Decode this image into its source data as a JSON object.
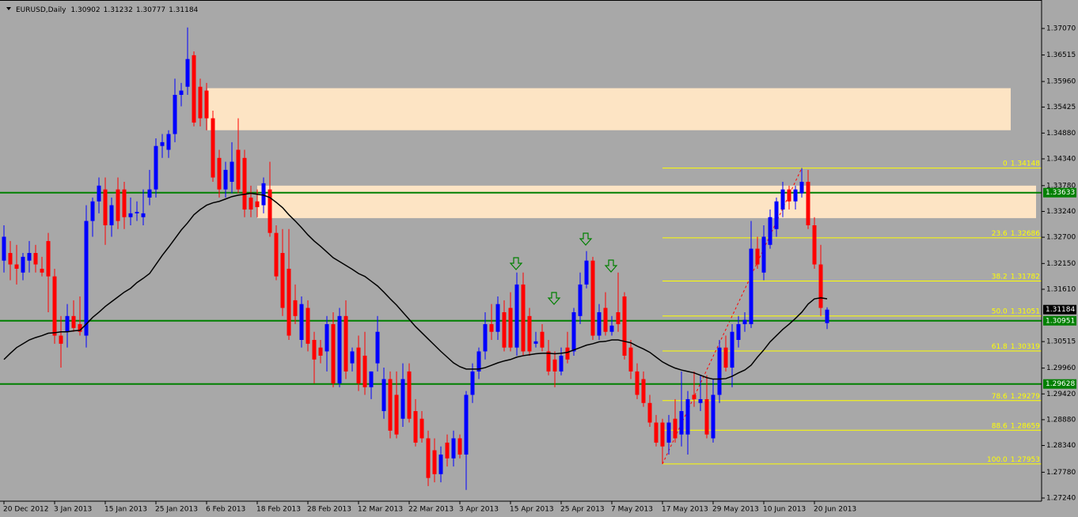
{
  "chart_data": {
    "type": "candlestick",
    "title": "EURUSD,Daily",
    "up_color": "#0000ff",
    "down_color": "#ff0000",
    "categories": [
      "20 Dec 2012",
      null,
      null,
      null,
      null,
      null,
      null,
      null,
      "3 Jan 2013",
      null,
      null,
      null,
      null,
      null,
      null,
      null,
      "15 Jan 2013",
      null,
      null,
      null,
      null,
      null,
      null,
      null,
      "25 Jan 2013",
      null,
      null,
      null,
      null,
      null,
      null,
      null,
      "6 Feb 2013",
      null,
      null,
      null,
      null,
      null,
      null,
      null,
      "18 Feb 2013",
      null,
      null,
      null,
      null,
      null,
      null,
      null,
      "28 Feb 2013",
      null,
      null,
      null,
      null,
      null,
      null,
      null,
      "12 Mar 2013",
      null,
      null,
      null,
      null,
      null,
      null,
      null,
      "22 Mar 2013",
      null,
      null,
      null,
      null,
      null,
      null,
      null,
      "3 Apr 2013",
      null,
      null,
      null,
      null,
      null,
      null,
      null,
      "15 Apr 2013",
      null,
      null,
      null,
      null,
      null,
      null,
      null,
      "25 Apr 2013",
      null,
      null,
      null,
      null,
      null,
      null,
      null,
      "7 May 2013",
      null,
      null,
      null,
      null,
      null,
      null,
      null,
      "17 May 2013",
      null,
      null,
      null,
      null,
      null,
      null,
      null,
      "29 May 2013",
      null,
      null,
      null,
      null,
      null,
      null,
      null,
      "10 Jun 2013",
      null,
      null,
      null,
      null,
      null,
      null,
      null,
      "20 Jun 2013",
      null,
      null
    ],
    "candles": [
      [
        1.3221,
        1.3295,
        1.3196,
        1.3271
      ],
      [
        1.3237,
        1.3262,
        1.318,
        1.3213
      ],
      [
        1.3213,
        1.3254,
        1.3171,
        1.3204
      ],
      [
        1.3196,
        1.3237,
        1.318,
        1.3229
      ],
      [
        1.3221,
        1.3262,
        1.3196,
        1.3237
      ],
      [
        1.3237,
        1.3254,
        1.3196,
        1.3213
      ],
      [
        1.3204,
        1.3229,
        1.3188,
        1.3196
      ],
      [
        1.3262,
        1.3279,
        1.3113,
        1.3188
      ],
      [
        1.3188,
        1.3204,
        1.3047,
        1.3064
      ],
      [
        1.3064,
        1.3105,
        1.2997,
        1.3047
      ],
      [
        1.3072,
        1.313,
        1.3039,
        1.3105
      ],
      [
        1.3105,
        1.3138,
        1.3072,
        1.308
      ],
      [
        1.3088,
        1.3146,
        1.3064,
        1.3072
      ],
      [
        1.3064,
        1.3337,
        1.3039,
        1.3304
      ],
      [
        1.3304,
        1.3353,
        1.3271,
        1.3345
      ],
      [
        1.3345,
        1.3395,
        1.332,
        1.3378
      ],
      [
        1.337,
        1.3395,
        1.3254,
        1.3295
      ],
      [
        1.3295,
        1.3353,
        1.3271,
        1.3337
      ],
      [
        1.337,
        1.3395,
        1.3287,
        1.3304
      ],
      [
        1.337,
        1.3386,
        1.3287,
        1.3312
      ],
      [
        1.3312,
        1.3353,
        1.3295,
        1.332
      ],
      [
        1.332,
        1.3345,
        1.3304,
        1.3323
      ],
      [
        1.3312,
        1.337,
        1.3295,
        1.332
      ],
      [
        1.3353,
        1.3411,
        1.3337,
        1.337
      ],
      [
        1.337,
        1.3477,
        1.3353,
        1.3461
      ],
      [
        1.3461,
        1.3486,
        1.3436,
        1.3469
      ],
      [
        1.3453,
        1.3494,
        1.3436,
        1.3486
      ],
      [
        1.3486,
        1.3602,
        1.3469,
        1.3568
      ],
      [
        1.3568,
        1.3593,
        1.3544,
        1.3577
      ],
      [
        1.3585,
        1.3709,
        1.3568,
        1.3643
      ],
      [
        1.3651,
        1.3659,
        1.3502,
        1.351
      ],
      [
        1.3585,
        1.3602,
        1.3502,
        1.3519
      ],
      [
        1.3577,
        1.3593,
        1.3494,
        1.3519
      ],
      [
        1.3519,
        1.3535,
        1.3386,
        1.3395
      ],
      [
        1.3436,
        1.3453,
        1.3353,
        1.337
      ],
      [
        1.337,
        1.3428,
        1.3353,
        1.3411
      ],
      [
        1.3386,
        1.3469,
        1.3362,
        1.3428
      ],
      [
        1.3453,
        1.3519,
        1.3362,
        1.337
      ],
      [
        1.3436,
        1.3453,
        1.3312,
        1.3328
      ],
      [
        1.3353,
        1.3378,
        1.3312,
        1.3328
      ],
      [
        1.3345,
        1.337,
        1.3312,
        1.3333
      ],
      [
        1.3337,
        1.3395,
        1.332,
        1.3383
      ],
      [
        1.337,
        1.3428,
        1.3271,
        1.3279
      ],
      [
        1.3279,
        1.3295,
        1.318,
        1.3188
      ],
      [
        1.3237,
        1.3287,
        1.3105,
        1.3122
      ],
      [
        1.3204,
        1.3287,
        1.3055,
        1.3064
      ],
      [
        1.3138,
        1.3171,
        1.3088,
        1.3105
      ],
      [
        1.3055,
        1.3146,
        1.3039,
        1.313
      ],
      [
        1.3122,
        1.3138,
        1.3031,
        1.3047
      ],
      [
        1.3055,
        1.3072,
        1.2964,
        1.3014
      ],
      [
        1.3039,
        1.3055,
        1.3006,
        1.3022
      ],
      [
        1.3031,
        1.3105,
        1.2989,
        1.3088
      ],
      [
        1.3088,
        1.3113,
        1.2956,
        1.2964
      ],
      [
        1.2964,
        1.3122,
        1.2956,
        1.3105
      ],
      [
        1.3105,
        1.3138,
        1.2973,
        1.2989
      ],
      [
        1.3006,
        1.3039,
        1.2989,
        1.3031
      ],
      [
        1.3039,
        1.3064,
        1.2948,
        1.2964
      ],
      [
        1.3022,
        1.3072,
        1.294,
        1.2956
      ],
      [
        1.2956,
        1.2989,
        1.2931,
        1.2989
      ],
      [
        1.3006,
        1.3105,
        1.2989,
        1.3072
      ],
      [
        1.2906,
        1.2997,
        1.289,
        1.2973
      ],
      [
        1.2973,
        1.2989,
        1.2849,
        1.2865
      ],
      [
        1.294,
        1.2989,
        1.2849,
        1.2857
      ],
      [
        1.289,
        1.3006,
        1.2873,
        1.2973
      ],
      [
        1.2989,
        1.3006,
        1.2882,
        1.289
      ],
      [
        1.2906,
        1.2931,
        1.2832,
        1.284
      ],
      [
        1.289,
        1.2906,
        1.284,
        1.2849
      ],
      [
        1.2849,
        1.2865,
        1.2749,
        1.2766
      ],
      [
        1.2824,
        1.2849,
        1.2757,
        1.2774
      ],
      [
        1.2774,
        1.2832,
        1.2757,
        1.2815
      ],
      [
        1.284,
        1.2857,
        1.279,
        1.2807
      ],
      [
        1.2807,
        1.2865,
        1.279,
        1.2849
      ],
      [
        1.2849,
        1.2857,
        1.2807,
        1.2815
      ],
      [
        1.2815,
        1.2948,
        1.2741,
        1.294
      ],
      [
        1.294,
        1.3006,
        1.2923,
        1.2989
      ],
      [
        1.2989,
        1.3039,
        1.2973,
        1.3031
      ],
      [
        1.3031,
        1.3113,
        1.3014,
        1.3088
      ],
      [
        1.3088,
        1.313,
        1.3055,
        1.3072
      ],
      [
        1.3072,
        1.3146,
        1.3055,
        1.313
      ],
      [
        1.3113,
        1.3138,
        1.3031,
        1.3039
      ],
      [
        1.3122,
        1.3155,
        1.3031,
        1.3039
      ],
      [
        1.3039,
        1.3196,
        1.3022,
        1.3171
      ],
      [
        1.3171,
        1.3196,
        1.3022,
        1.3031
      ],
      [
        1.3105,
        1.3122,
        1.3022,
        1.3031
      ],
      [
        1.3047,
        1.3072,
        1.3039,
        1.3052
      ],
      [
        1.3072,
        1.3088,
        1.3031,
        1.3039
      ],
      [
        1.3031,
        1.3055,
        1.2981,
        1.2989
      ],
      [
        1.3014,
        1.3031,
        1.2956,
        1.2989
      ],
      [
        1.2989,
        1.3039,
        1.2981,
        1.3022
      ],
      [
        1.3039,
        1.3072,
        1.3006,
        1.3014
      ],
      [
        1.3031,
        1.3122,
        1.3022,
        1.3113
      ],
      [
        1.3105,
        1.3196,
        1.3088,
        1.3171
      ],
      [
        1.3171,
        1.3241,
        1.3163,
        1.3221
      ],
      [
        1.3221,
        1.3229,
        1.3055,
        1.3064
      ],
      [
        1.3064,
        1.313,
        1.3055,
        1.3113
      ],
      [
        1.3122,
        1.3155,
        1.3064,
        1.3072
      ],
      [
        1.3072,
        1.3105,
        1.3064,
        1.3085
      ],
      [
        1.3113,
        1.3196,
        1.3072,
        1.3088
      ],
      [
        1.3146,
        1.3155,
        1.3014,
        1.3022
      ],
      [
        1.3039,
        1.3055,
        1.2973,
        1.2989
      ],
      [
        1.2989,
        1.3006,
        1.2931,
        1.294
      ],
      [
        1.2973,
        1.2989,
        1.2915,
        1.2923
      ],
      [
        1.2923,
        1.294,
        1.2873,
        1.2882
      ],
      [
        1.2882,
        1.2898,
        1.2832,
        1.284
      ],
      [
        1.2882,
        1.289,
        1.2795,
        1.2832
      ],
      [
        1.284,
        1.2898,
        1.2815,
        1.2882
      ],
      [
        1.289,
        1.2931,
        1.284,
        1.2849
      ],
      [
        1.2857,
        1.2989,
        1.2832,
        1.2906
      ],
      [
        1.2857,
        1.2948,
        1.2815,
        1.2931
      ],
      [
        1.294,
        1.2989,
        1.2915,
        1.2931
      ],
      [
        1.2923,
        1.2981,
        1.2906,
        1.2931
      ],
      [
        1.2931,
        1.2981,
        1.2849,
        1.2857
      ],
      [
        1.2849,
        1.2973,
        1.284,
        1.294
      ],
      [
        1.294,
        1.3055,
        1.2923,
        1.3039
      ],
      [
        1.3039,
        1.3064,
        1.2989,
        1.2997
      ],
      [
        1.2997,
        1.3088,
        1.2956,
        1.3072
      ],
      [
        1.3055,
        1.3105,
        1.3039,
        1.3088
      ],
      [
        1.3088,
        1.3113,
        1.3072,
        1.3097
      ],
      [
        1.3088,
        1.3304,
        1.308,
        1.3246
      ],
      [
        1.3246,
        1.3271,
        1.3204,
        1.3213
      ],
      [
        1.3196,
        1.3295,
        1.318,
        1.3271
      ],
      [
        1.3254,
        1.3328,
        1.3246,
        1.3312
      ],
      [
        1.3287,
        1.3353,
        1.3271,
        1.3345
      ],
      [
        1.3328,
        1.3386,
        1.3312,
        1.337
      ],
      [
        1.337,
        1.3378,
        1.3328,
        1.3345
      ],
      [
        1.3345,
        1.3378,
        1.3328,
        1.337
      ],
      [
        1.3362,
        1.3415,
        1.3353,
        1.3386
      ],
      [
        1.3386,
        1.3411,
        1.3287,
        1.3295
      ],
      [
        1.3295,
        1.3312,
        1.3204,
        1.3213
      ],
      [
        1.3213,
        1.3254,
        1.3105,
        1.3122
      ],
      [
        1.30902,
        1.31232,
        1.30777,
        1.31184
      ]
    ],
    "moving_average": {
      "color": "#000000",
      "values": [
        1.3014,
        1.3027,
        1.3039,
        1.3047,
        1.3055,
        1.306,
        1.3064,
        1.3069,
        1.307,
        1.3072,
        1.3072,
        1.3074,
        1.3075,
        1.3088,
        1.3102,
        1.3113,
        1.3125,
        1.3135,
        1.3145,
        1.3155,
        1.3163,
        1.3175,
        1.3184,
        1.3194,
        1.3213,
        1.3232,
        1.3249,
        1.3267,
        1.3285,
        1.33,
        1.3317,
        1.3328,
        1.3337,
        1.3342,
        1.3345,
        1.335,
        1.3355,
        1.3358,
        1.336,
        1.3362,
        1.336,
        1.3358,
        1.3353,
        1.3343,
        1.3332,
        1.3317,
        1.3304,
        1.329,
        1.3275,
        1.3262,
        1.3251,
        1.3239,
        1.3227,
        1.3219,
        1.3211,
        1.3203,
        1.3194,
        1.3188,
        1.3178,
        1.3168,
        1.3155,
        1.3141,
        1.3128,
        1.3113,
        1.3098,
        1.3083,
        1.307,
        1.3057,
        1.3044,
        1.3031,
        1.3019,
        1.3007,
        1.2999,
        1.2994,
        1.2994,
        1.2994,
        1.2997,
        1.3002,
        1.3007,
        1.3011,
        1.3014,
        1.3019,
        1.3022,
        1.3024,
        1.3026,
        1.3027,
        1.3027,
        1.3026,
        1.3027,
        1.3029,
        1.3034,
        1.3039,
        1.3044,
        1.3047,
        1.3051,
        1.3052,
        1.3055,
        1.3055,
        1.3052,
        1.3049,
        1.3042,
        1.3036,
        1.3029,
        1.3019,
        1.3009,
        1.3002,
        1.2996,
        1.2992,
        1.2989,
        1.2986,
        1.2981,
        1.2976,
        1.2973,
        1.2973,
        1.2974,
        1.2979,
        1.2986,
        1.2992,
        1.3002,
        1.3019,
        1.3034,
        1.3051,
        1.3064,
        1.3077,
        1.3088,
        1.31,
        1.3113,
        1.313,
        1.3141,
        1.3143,
        1.3141
      ]
    },
    "zones": [
      {
        "top": 1.3582,
        "bottom": 1.3494,
        "color": "#fde4c4"
      },
      {
        "top": 1.3378,
        "bottom": 1.331,
        "color": "#fde4c4"
      }
    ],
    "levels": [
      {
        "value": 1.33633,
        "color": "#008000"
      },
      {
        "value": 1.30951,
        "color": "#008000"
      },
      {
        "value": 1.29628,
        "color": "#008000"
      }
    ],
    "fibonacci": {
      "color": "#ffff00",
      "anchor_color": "#ff0000",
      "levels": [
        {
          "ratio": "0",
          "value": 1.34148
        },
        {
          "ratio": "23.6",
          "value": 1.32686
        },
        {
          "ratio": "38.2",
          "value": 1.31782
        },
        {
          "ratio": "50.0",
          "value": 1.31051
        },
        {
          "ratio": "61.8",
          "value": 1.30319
        },
        {
          "ratio": "78.6",
          "value": 1.29279
        },
        {
          "ratio": "88.6",
          "value": 1.28659
        },
        {
          "ratio": "100.0",
          "value": 1.27953
        }
      ]
    },
    "ylim": [
      1.27174,
      1.37666
    ],
    "yticks": [
      {
        "value": 1.3707,
        "label": "1.37070"
      },
      1.36515,
      {
        "value": 1.3596,
        "label": "1.35960"
      },
      1.35425,
      {
        "value": 1.3488,
        "label": "1.34880"
      },
      {
        "value": 1.3434,
        "label": "1.34340"
      },
      {
        "value": 1.3378,
        "label": "1.33780"
      },
      {
        "value": 1.3324,
        "label": "1.33240"
      },
      {
        "value": 1.327,
        "label": "1.32700"
      },
      {
        "value": 1.3215,
        "label": "1.32150"
      },
      {
        "value": 1.3161,
        "label": "1.31610"
      },
      1.30515,
      {
        "value": 1.2996,
        "label": "1.29960"
      },
      {
        "value": 1.2942,
        "label": "1.29420"
      },
      {
        "value": 1.2888,
        "label": "1.28880"
      },
      {
        "value": 1.2834,
        "label": "1.28340"
      },
      {
        "value": 1.2778,
        "label": "1.27780"
      },
      {
        "value": 1.2724,
        "label": "1.27240"
      }
    ]
  }
}
